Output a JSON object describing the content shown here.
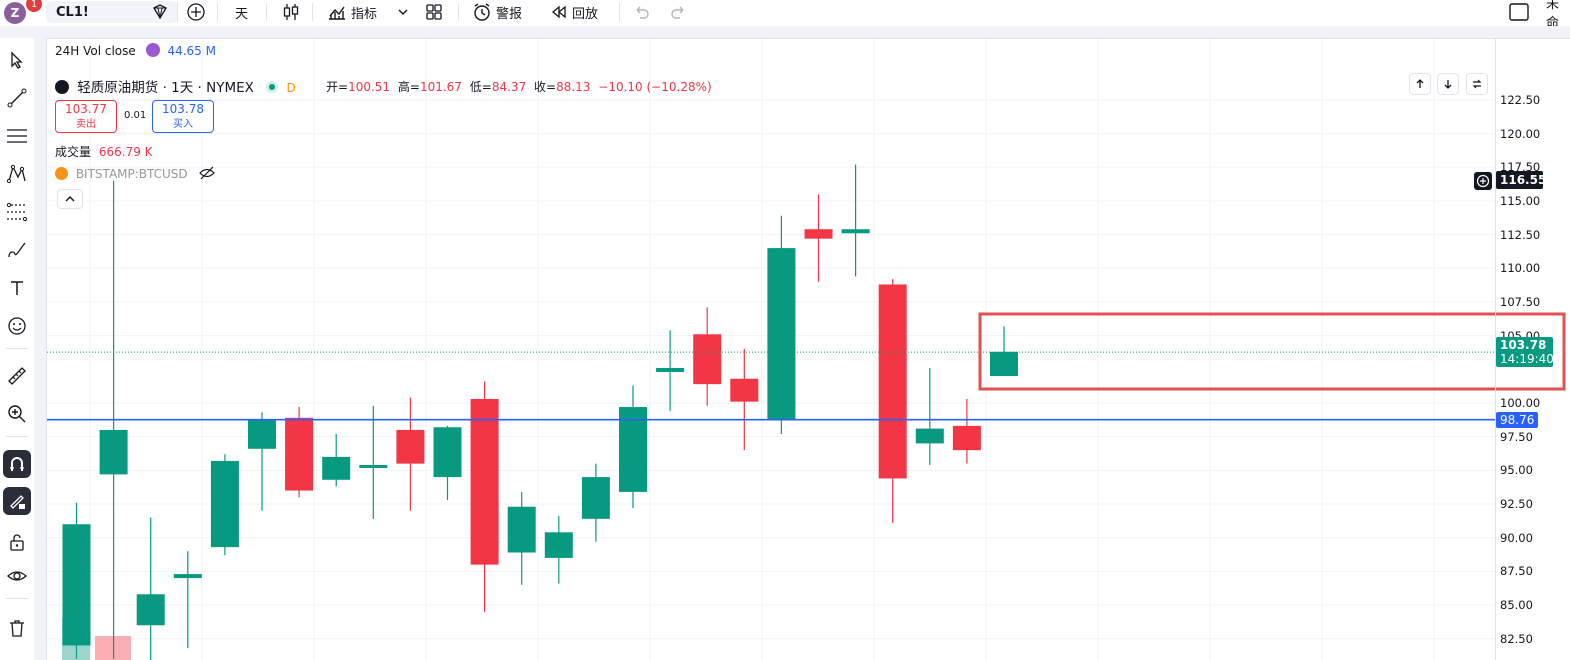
{
  "topbar": {
    "avatar_letter": "Z",
    "badge_count": "1",
    "symbol": "CL1!",
    "interval": "天",
    "indicators_label": "指标",
    "alert_label": "警报",
    "replay_label": "回放",
    "right_text": "未命"
  },
  "legend": {
    "vol24h_label": "24H Vol close",
    "vol24h_value": "44.65 M",
    "title": "轻质原油期货 · 1天 · NYMEX",
    "d_badge": "D",
    "open_label": "开=",
    "open_value": "100.51",
    "high_label": "高=",
    "high_value": "101.67",
    "low_label": "低=",
    "low_value": "84.37",
    "close_label": "收=",
    "close_value": "88.13",
    "change": "−10.10 (−10.28%)",
    "sell_price": "103.77",
    "sell_label": "卖出",
    "spread": "0.01",
    "buy_price": "103.78",
    "buy_label": "买入",
    "volume_label": "成交量",
    "volume_value": "666.79 K",
    "compare_symbol": "BITSTAMP:BTCUSD"
  },
  "price_axis": {
    "labels": [
      "122.50",
      "120.00",
      "117.50",
      "115.00",
      "112.50",
      "110.00",
      "107.50",
      "105.00",
      "100.00",
      "97.50",
      "95.00",
      "92.50",
      "90.00",
      "87.50",
      "85.00",
      "82.50"
    ],
    "tag_high": "116.55",
    "tag_current_price": "103.78",
    "tag_current_time": "14:19:40",
    "tag_line": "98.76"
  },
  "colors": {
    "up": "#089981",
    "down": "#f23645",
    "hline": "#2962ff",
    "highlight_box": "#e05050"
  },
  "chart_data": {
    "type": "candlestick",
    "ylim": [
      81.5,
      125
    ],
    "horizontal_line": 98.76,
    "last_price": 103.78,
    "candles": [
      {
        "o": 82,
        "h": 92.6,
        "l": 81,
        "c": 91
      },
      {
        "o": 94.7,
        "h": 116.5,
        "l": 81,
        "c": 98
      },
      {
        "o": 83.5,
        "h": 91.5,
        "l": 80,
        "c": 85.8
      },
      {
        "o": 87,
        "h": 89,
        "l": 81.8,
        "c": 87.3
      },
      {
        "o": 89.3,
        "h": 96.2,
        "l": 88.7,
        "c": 95.7
      },
      {
        "o": 96.6,
        "h": 99.3,
        "l": 92,
        "c": 98.7
      },
      {
        "o": 98.9,
        "h": 99.7,
        "l": 93,
        "c": 93.5
      },
      {
        "o": 94.3,
        "h": 97.7,
        "l": 93.8,
        "c": 96
      },
      {
        "o": 95.3,
        "h": 99.8,
        "l": 91.4,
        "c": 95.4
      },
      {
        "o": 98,
        "h": 100.4,
        "l": 92,
        "c": 95.5
      },
      {
        "o": 94.5,
        "h": 98.3,
        "l": 92.8,
        "c": 98.2
      },
      {
        "o": 100.3,
        "h": 101.6,
        "l": 84.5,
        "c": 88
      },
      {
        "o": 88.9,
        "h": 93.4,
        "l": 86.5,
        "c": 92.3
      },
      {
        "o": 88.5,
        "h": 91.6,
        "l": 86.6,
        "c": 90.4
      },
      {
        "o": 91.4,
        "h": 95.5,
        "l": 89.7,
        "c": 94.5
      },
      {
        "o": 93.4,
        "h": 101.3,
        "l": 92.2,
        "c": 99.7
      },
      {
        "o": 102.3,
        "h": 105.4,
        "l": 99.4,
        "c": 102.6
      },
      {
        "o": 105.1,
        "h": 107.1,
        "l": 99.8,
        "c": 101.4
      },
      {
        "o": 101.8,
        "h": 104,
        "l": 96.5,
        "c": 100.1
      },
      {
        "o": 98.8,
        "h": 113.9,
        "l": 97.7,
        "c": 111.5
      },
      {
        "o": 112.9,
        "h": 115.5,
        "l": 109,
        "c": 112.2
      },
      {
        "o": 112.6,
        "h": 117.7,
        "l": 109.4,
        "c": 112.9
      },
      {
        "o": 108.8,
        "h": 109.2,
        "l": 91.1,
        "c": 94.4
      },
      {
        "o": 97,
        "h": 102.6,
        "l": 95.4,
        "c": 98.1
      },
      {
        "o": 98.3,
        "h": 100.3,
        "l": 95.5,
        "c": 96.5
      },
      {
        "o": 102,
        "h": 105.7,
        "l": 102,
        "c": 103.8
      }
    ]
  }
}
